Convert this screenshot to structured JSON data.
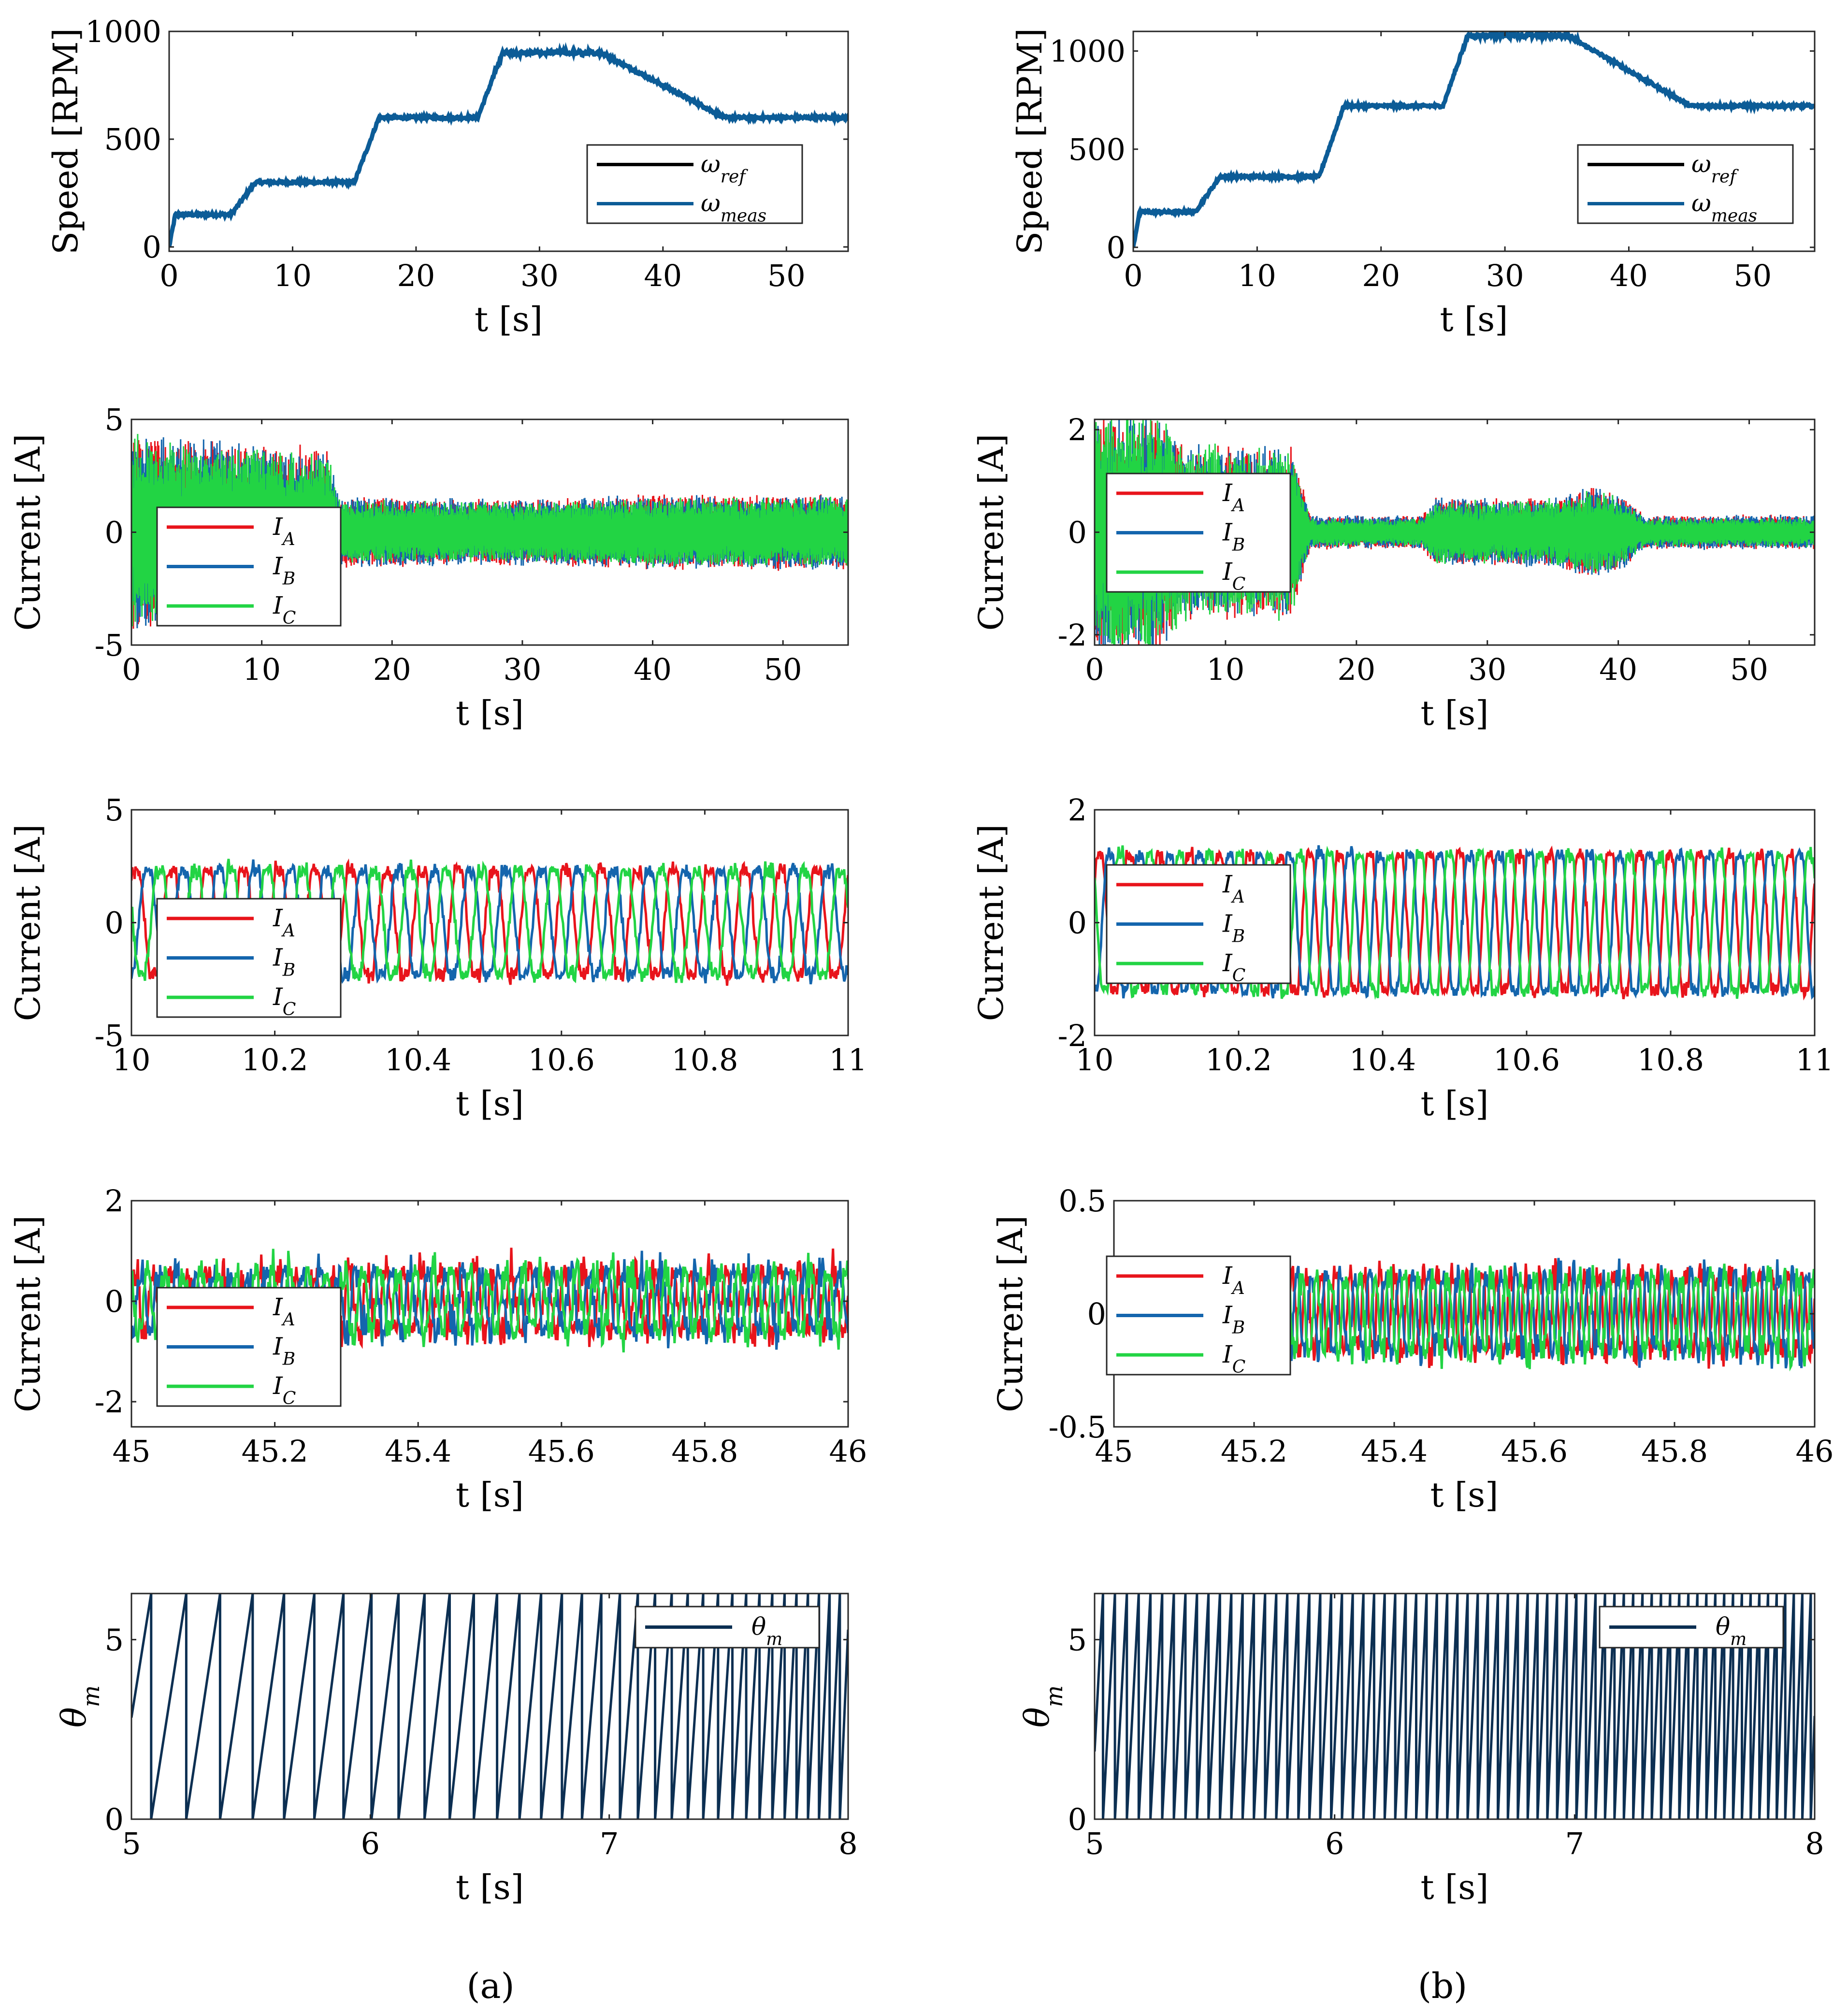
{
  "figure": {
    "captions": [
      "(a)",
      "(b)"
    ]
  },
  "colors": {
    "ref": "#000000",
    "meas": "#0c5c97",
    "IA": "#e8141b",
    "IB": "#1465ad",
    "IC": "#22d444",
    "theta": "#0c2f52"
  },
  "chart_data": [
    {
      "id": "a1",
      "type": "line",
      "xlabel": "t [s]",
      "ylabel": "Speed [RPM]",
      "xlim": [
        0,
        55
      ],
      "ylim": [
        -20,
        1000
      ],
      "xticks": [
        0,
        10,
        20,
        30,
        40,
        50
      ],
      "yticks": [
        0,
        500,
        1000
      ],
      "legend_pos": "bottom-right",
      "legend": [
        "ω_ref",
        "ω_meas"
      ],
      "series": [
        {
          "name": "ω_ref",
          "kind": "speed",
          "profile": [
            [
              0,
              0
            ],
            [
              0.5,
              150
            ],
            [
              5,
              150
            ],
            [
              7,
              300
            ],
            [
              15,
              300
            ],
            [
              17,
              600
            ],
            [
              25,
              600
            ],
            [
              27,
              900
            ],
            [
              35,
              900
            ],
            [
              45,
              600
            ],
            [
              55,
              600
            ]
          ]
        },
        {
          "name": "ω_meas",
          "kind": "speed",
          "profile": [
            [
              0,
              0
            ],
            [
              0.5,
              150
            ],
            [
              5,
              150
            ],
            [
              7,
              300
            ],
            [
              15,
              300
            ],
            [
              17,
              600
            ],
            [
              25,
              600
            ],
            [
              27,
              900
            ],
            [
              35,
              900
            ],
            [
              45,
              600
            ],
            [
              55,
              600
            ]
          ]
        }
      ]
    },
    {
      "id": "b1",
      "type": "line",
      "xlabel": "t [s]",
      "ylabel": "Speed [RPM]",
      "xlim": [
        0,
        55
      ],
      "ylim": [
        -20,
        1100
      ],
      "xticks": [
        0,
        10,
        20,
        30,
        40,
        50
      ],
      "yticks": [
        0,
        500,
        1000
      ],
      "legend_pos": "bottom-right",
      "legend": [
        "ω_ref",
        "ω_meas"
      ],
      "series": [
        {
          "name": "ω_ref",
          "kind": "speed",
          "profile": [
            [
              0,
              0
            ],
            [
              0.5,
              180
            ],
            [
              5,
              180
            ],
            [
              7,
              360
            ],
            [
              15,
              360
            ],
            [
              17,
              720
            ],
            [
              25,
              720
            ],
            [
              27,
              1080
            ],
            [
              35,
              1080
            ],
            [
              45,
              720
            ],
            [
              55,
              720
            ]
          ]
        },
        {
          "name": "ω_meas",
          "kind": "speed",
          "profile": [
            [
              0,
              0
            ],
            [
              0.5,
              180
            ],
            [
              5,
              180
            ],
            [
              7,
              360
            ],
            [
              15,
              360
            ],
            [
              17,
              720
            ],
            [
              25,
              720
            ],
            [
              27,
              1080
            ],
            [
              35,
              1080
            ],
            [
              45,
              720
            ],
            [
              55,
              720
            ]
          ]
        }
      ]
    },
    {
      "id": "a2",
      "type": "line",
      "xlabel": "t [s]",
      "ylabel": "Current [A]",
      "xlim": [
        0,
        55
      ],
      "ylim": [
        -5,
        5
      ],
      "xticks": [
        0,
        10,
        20,
        30,
        40,
        50
      ],
      "yticks": [
        -5,
        0,
        5
      ],
      "legend_pos": "bottom-left",
      "legend": [
        "I_A",
        "I_B",
        "I_C"
      ],
      "series": [
        {
          "name": "I_A",
          "kind": "envelope",
          "envelope": [
            [
              0,
              4
            ],
            [
              15,
              3.3
            ],
            [
              16,
              1.4
            ],
            [
              30,
              1.3
            ],
            [
              40,
              1.5
            ],
            [
              55,
              1.5
            ]
          ]
        },
        {
          "name": "I_B",
          "kind": "envelope",
          "envelope": [
            [
              0,
              4
            ],
            [
              15,
              3.3
            ],
            [
              16,
              1.4
            ],
            [
              30,
              1.3
            ],
            [
              40,
              1.5
            ],
            [
              55,
              1.5
            ]
          ]
        },
        {
          "name": "I_C",
          "kind": "envelope",
          "envelope": [
            [
              0,
              3.9
            ],
            [
              15,
              3.2
            ],
            [
              16,
              1.3
            ],
            [
              30,
              1.2
            ],
            [
              40,
              1.4
            ],
            [
              55,
              1.4
            ]
          ]
        }
      ]
    },
    {
      "id": "b2",
      "type": "line",
      "xlabel": "t [s]",
      "ylabel": "Current [A]",
      "xlim": [
        0,
        55
      ],
      "ylim": [
        -2.2,
        2.2
      ],
      "xticks": [
        0,
        10,
        20,
        30,
        40,
        50
      ],
      "yticks": [
        -2,
        0,
        2
      ],
      "legend_pos": "center-left",
      "legend": [
        "I_A",
        "I_B",
        "I_C"
      ],
      "series": [
        {
          "name": "I_A",
          "kind": "envelope",
          "envelope": [
            [
              0,
              2.1
            ],
            [
              5,
              2.1
            ],
            [
              7,
              1.5
            ],
            [
              15,
              1.5
            ],
            [
              16.5,
              0.3
            ],
            [
              25,
              0.3
            ],
            [
              26,
              0.6
            ],
            [
              35,
              0.6
            ],
            [
              38,
              0.8
            ],
            [
              40,
              0.7
            ],
            [
              42,
              0.3
            ],
            [
              55,
              0.3
            ]
          ]
        },
        {
          "name": "I_B",
          "kind": "envelope",
          "envelope": [
            [
              0,
              2.1
            ],
            [
              5,
              2.1
            ],
            [
              7,
              1.5
            ],
            [
              15,
              1.5
            ],
            [
              16.5,
              0.3
            ],
            [
              25,
              0.3
            ],
            [
              26,
              0.6
            ],
            [
              35,
              0.6
            ],
            [
              38,
              0.8
            ],
            [
              40,
              0.7
            ],
            [
              42,
              0.3
            ],
            [
              55,
              0.3
            ]
          ]
        },
        {
          "name": "I_C",
          "kind": "envelope",
          "envelope": [
            [
              0,
              2.1
            ],
            [
              5,
              2.1
            ],
            [
              7,
              1.5
            ],
            [
              15,
              1.5
            ],
            [
              16.5,
              0.25
            ],
            [
              25,
              0.25
            ],
            [
              26,
              0.55
            ],
            [
              35,
              0.55
            ],
            [
              38,
              0.75
            ],
            [
              40,
              0.65
            ],
            [
              42,
              0.25
            ],
            [
              55,
              0.25
            ]
          ]
        }
      ]
    },
    {
      "id": "a3",
      "type": "line",
      "xlabel": "t [s]",
      "ylabel": "Current [A]",
      "xlim": [
        10,
        11
      ],
      "ylim": [
        -5,
        5
      ],
      "xticks": [
        10,
        10.2,
        10.4,
        10.6,
        10.8,
        11
      ],
      "yticks": [
        -5,
        0,
        5
      ],
      "legend_pos": "bottom-left",
      "legend": [
        "I_A",
        "I_B",
        "I_C"
      ],
      "series": [
        {
          "name": "I_A",
          "kind": "sine",
          "amp": 2.3,
          "freq": 20,
          "phase": 0.8,
          "noise": 0.35
        },
        {
          "name": "I_B",
          "kind": "sine",
          "amp": 2.3,
          "freq": 20,
          "phase": -1.29,
          "noise": 0.35
        },
        {
          "name": "I_C",
          "kind": "sine",
          "amp": 2.3,
          "freq": 20,
          "phase": 2.89,
          "noise": 0.35
        }
      ]
    },
    {
      "id": "b3",
      "type": "line",
      "xlabel": "t [s]",
      "ylabel": "Current [A]",
      "xlim": [
        10,
        11
      ],
      "ylim": [
        -2,
        2
      ],
      "xticks": [
        10,
        10.2,
        10.4,
        10.6,
        10.8,
        11
      ],
      "yticks": [
        -2,
        0,
        2
      ],
      "legend_pos": "center-left",
      "legend": [
        "I_A",
        "I_B",
        "I_C"
      ],
      "series": [
        {
          "name": "I_A",
          "kind": "sine",
          "amp": 1.2,
          "freq": 24,
          "phase": 0.5,
          "noise": 0.12
        },
        {
          "name": "I_B",
          "kind": "sine",
          "amp": 1.2,
          "freq": 24,
          "phase": -1.59,
          "noise": 0.12
        },
        {
          "name": "I_C",
          "kind": "sine",
          "amp": 1.2,
          "freq": 24,
          "phase": 2.59,
          "noise": 0.12
        }
      ]
    },
    {
      "id": "a4",
      "type": "line",
      "xlabel": "t [s]",
      "ylabel": "Current [A]",
      "xlim": [
        45,
        46
      ],
      "ylim": [
        -2.5,
        2
      ],
      "xticks": [
        45,
        45.2,
        45.4,
        45.6,
        45.8,
        46
      ],
      "yticks": [
        -2,
        0,
        2
      ],
      "legend_pos": "bottom-left",
      "legend": [
        "I_A",
        "I_B",
        "I_C"
      ],
      "series": [
        {
          "name": "I_A",
          "kind": "sine",
          "amp": 0.55,
          "freq": 40,
          "phase": 0.3,
          "noise": 0.35
        },
        {
          "name": "I_B",
          "kind": "sine",
          "amp": 0.55,
          "freq": 40,
          "phase": -1.79,
          "noise": 0.35
        },
        {
          "name": "I_C",
          "kind": "sine",
          "amp": 0.55,
          "freq": 40,
          "phase": 2.39,
          "noise": 0.35
        }
      ]
    },
    {
      "id": "b4",
      "type": "line",
      "xlabel": "t [s]",
      "ylabel": "Current [A]",
      "xlim": [
        45,
        46
      ],
      "ylim": [
        -0.5,
        0.5
      ],
      "xticks": [
        45,
        45.2,
        45.4,
        45.6,
        45.8,
        46
      ],
      "yticks": [
        -0.5,
        0,
        0.5
      ],
      "legend_pos": "center-left",
      "legend": [
        "I_A",
        "I_B",
        "I_C"
      ],
      "series": [
        {
          "name": "I_A",
          "kind": "sine",
          "amp": 0.16,
          "freq": 48,
          "phase": 0.3,
          "noise": 0.07
        },
        {
          "name": "I_B",
          "kind": "sine",
          "amp": 0.16,
          "freq": 48,
          "phase": -1.79,
          "noise": 0.07
        },
        {
          "name": "I_C",
          "kind": "sine",
          "amp": 0.16,
          "freq": 48,
          "phase": 2.39,
          "noise": 0.07
        }
      ]
    },
    {
      "id": "a5",
      "type": "line",
      "xlabel": "t [s]",
      "ylabel": "θm",
      "xlim": [
        5,
        8
      ],
      "ylim": [
        0,
        6.283
      ],
      "xticks": [
        5,
        6,
        7,
        8
      ],
      "yticks": [
        0,
        5
      ],
      "legend_pos": "top-right",
      "legend": [
        "θm"
      ],
      "series": [
        {
          "name": "θm",
          "kind": "saw",
          "period": 0.15,
          "period_end": 0.04,
          "phase0": 0.45
        }
      ]
    },
    {
      "id": "b5",
      "type": "line",
      "xlabel": "t [s]",
      "ylabel": "θm",
      "xlim": [
        5,
        8
      ],
      "ylim": [
        0,
        6.283
      ],
      "xticks": [
        5,
        6,
        7,
        8
      ],
      "yticks": [
        0,
        5
      ],
      "legend_pos": "top-right",
      "legend": [
        "θm"
      ],
      "series": [
        {
          "name": "θm",
          "kind": "saw",
          "period": 0.05,
          "period_end": 0.035,
          "phase0": 0.3
        }
      ]
    }
  ]
}
